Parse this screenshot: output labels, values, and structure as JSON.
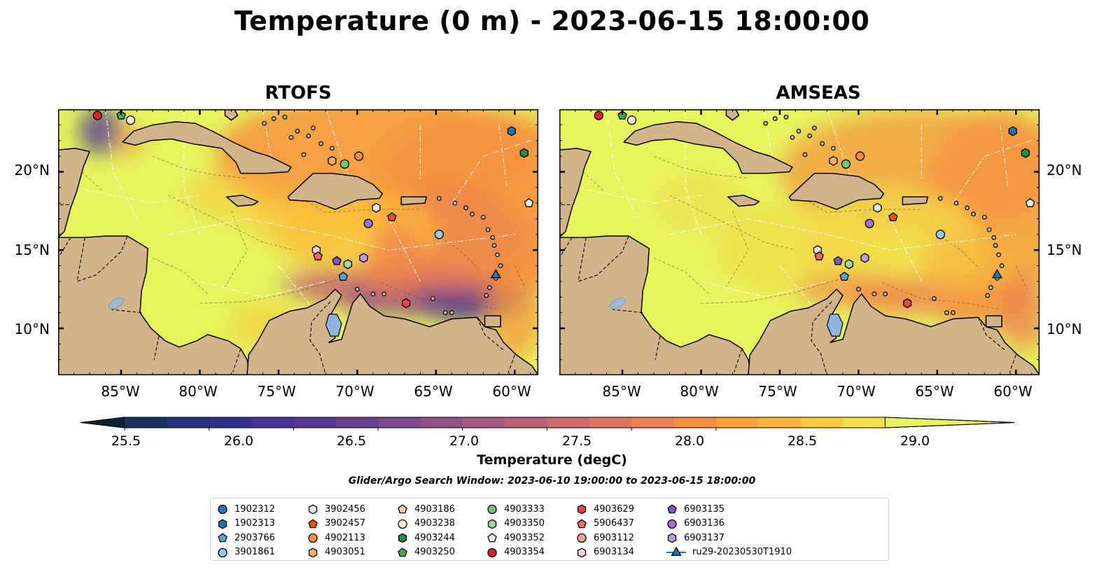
{
  "title": "Temperature (0 m) - 2023-06-15 18:00:00",
  "panels": [
    {
      "id": "rtofs",
      "title": "RTOFS"
    },
    {
      "id": "amseas",
      "title": "AMSEAS"
    }
  ],
  "axes": {
    "x_ticks": [
      "85°W",
      "80°W",
      "75°W",
      "70°W",
      "65°W",
      "60°W"
    ],
    "y_ticks": [
      "20°N",
      "15°N",
      "10°N"
    ],
    "lon_range": [
      -89,
      -58.5
    ],
    "lat_range": [
      7,
      24
    ]
  },
  "colorbar": {
    "label": "Temperature (degC)",
    "ticks": [
      "25.5",
      "26.0",
      "26.5",
      "27.0",
      "27.5",
      "28.0",
      "28.5",
      "29.0"
    ],
    "range": [
      25.5,
      29.25
    ],
    "extend": "both",
    "colors": [
      "#0b2238",
      "#16305a",
      "#23327a",
      "#352f8c",
      "#463294",
      "#583893",
      "#6a4190",
      "#7d4a8c",
      "#915386",
      "#a65b7f",
      "#ba6275",
      "#cc6a69",
      "#dd745e",
      "#ec8051",
      "#f68e44",
      "#fb9f3a",
      "#fdb43a",
      "#fcc93f",
      "#f4e04b",
      "#e6f45d"
    ]
  },
  "search_window": "Glider/Argo Search Window: 2023-06-10 19:00:00 to 2023-06-15 18:00:00",
  "colors": {
    "land": "#d2b48c",
    "ocean_background": "#8fb4e0",
    "warm": "#e6f45d",
    "orange": "#f5923f",
    "cold": "#463294"
  },
  "legend": [
    {
      "label": "1902312",
      "marker": "circle",
      "color": "#1f77b4"
    },
    {
      "label": "1902313",
      "marker": "hexagon",
      "color": "#1f77b4"
    },
    {
      "label": "2903766",
      "marker": "pentagon",
      "color": "#5ba3d0"
    },
    {
      "label": "3901861",
      "marker": "circle",
      "color": "#9ecae1"
    },
    {
      "label": "3902456",
      "marker": "hexagon",
      "color": "#deebf7"
    },
    {
      "label": "3902457",
      "marker": "pentagon",
      "color": "#e6550d"
    },
    {
      "label": "4902113",
      "marker": "circle",
      "color": "#fd8d3c"
    },
    {
      "label": "4903051",
      "marker": "hexagon",
      "color": "#fdae6b"
    },
    {
      "label": "4903186",
      "marker": "pentagon",
      "color": "#fdd0a2"
    },
    {
      "label": "4903238",
      "marker": "circle",
      "color": "#feedde"
    },
    {
      "label": "4903244",
      "marker": "hexagon",
      "color": "#238b45"
    },
    {
      "label": "4903250",
      "marker": "pentagon",
      "color": "#41ab5d"
    },
    {
      "label": "4903333",
      "marker": "circle",
      "color": "#74c476"
    },
    {
      "label": "4903350",
      "marker": "hexagon",
      "color": "#a1d99b"
    },
    {
      "label": "4903352",
      "marker": "pentagon",
      "color": "#e5f5e0"
    },
    {
      "label": "4903354",
      "marker": "circle",
      "color": "#d62728"
    },
    {
      "label": "4903629",
      "marker": "hexagon",
      "color": "#e04848"
    },
    {
      "label": "5906437",
      "marker": "pentagon",
      "color": "#ee6a6a"
    },
    {
      "label": "6903112",
      "marker": "circle",
      "color": "#f4a3a3"
    },
    {
      "label": "6903134",
      "marker": "hexagon",
      "color": "#fcd5d5"
    },
    {
      "label": "6903135",
      "marker": "pentagon",
      "color": "#7e57c2"
    },
    {
      "label": "6903136",
      "marker": "circle",
      "color": "#9e6fd0"
    },
    {
      "label": "6903137",
      "marker": "hexagon",
      "color": "#bc9ae0"
    },
    {
      "label": "ru29-20230530T1910",
      "marker": "triangle-line",
      "color": "#1f77b4"
    }
  ],
  "platforms": [
    {
      "id": "4903354",
      "lon": -86.5,
      "lat": 23.6
    },
    {
      "id": "4903250",
      "lon": -85.0,
      "lat": 23.6
    },
    {
      "id": "4903238",
      "lon": -84.4,
      "lat": 23.3
    },
    {
      "id": "1902313",
      "lon": -60.2,
      "lat": 22.6
    },
    {
      "id": "4903244",
      "lon": -59.4,
      "lat": 21.2
    },
    {
      "id": "4902113",
      "lon": -69.9,
      "lat": 21.0
    },
    {
      "id": "4903051",
      "lon": -71.6,
      "lat": 20.7
    },
    {
      "id": "4903333",
      "lon": -70.8,
      "lat": 20.5
    },
    {
      "id": "4903352",
      "lon": -59.1,
      "lat": 18.0
    },
    {
      "id": "3902456",
      "lon": -68.8,
      "lat": 17.7
    },
    {
      "id": "3902457",
      "lon": -67.8,
      "lat": 17.1
    },
    {
      "id": "6903136",
      "lon": -69.3,
      "lat": 16.7
    },
    {
      "id": "3901861",
      "lon": -64.8,
      "lat": 16.0
    },
    {
      "id": "6903134",
      "lon": -72.6,
      "lat": 15.0
    },
    {
      "id": "5906437",
      "lon": -72.5,
      "lat": 14.6
    },
    {
      "id": "6903137",
      "lon": -69.6,
      "lat": 14.5
    },
    {
      "id": "6903135",
      "lon": -71.3,
      "lat": 14.3
    },
    {
      "id": "4903350",
      "lon": -70.6,
      "lat": 14.1
    },
    {
      "id": "2903766",
      "lon": -70.9,
      "lat": 13.3
    },
    {
      "id": "4903629",
      "lon": -66.9,
      "lat": 11.6
    },
    {
      "id": "ru29-20230530T1910",
      "lon": -61.2,
      "lat": 13.4
    }
  ]
}
